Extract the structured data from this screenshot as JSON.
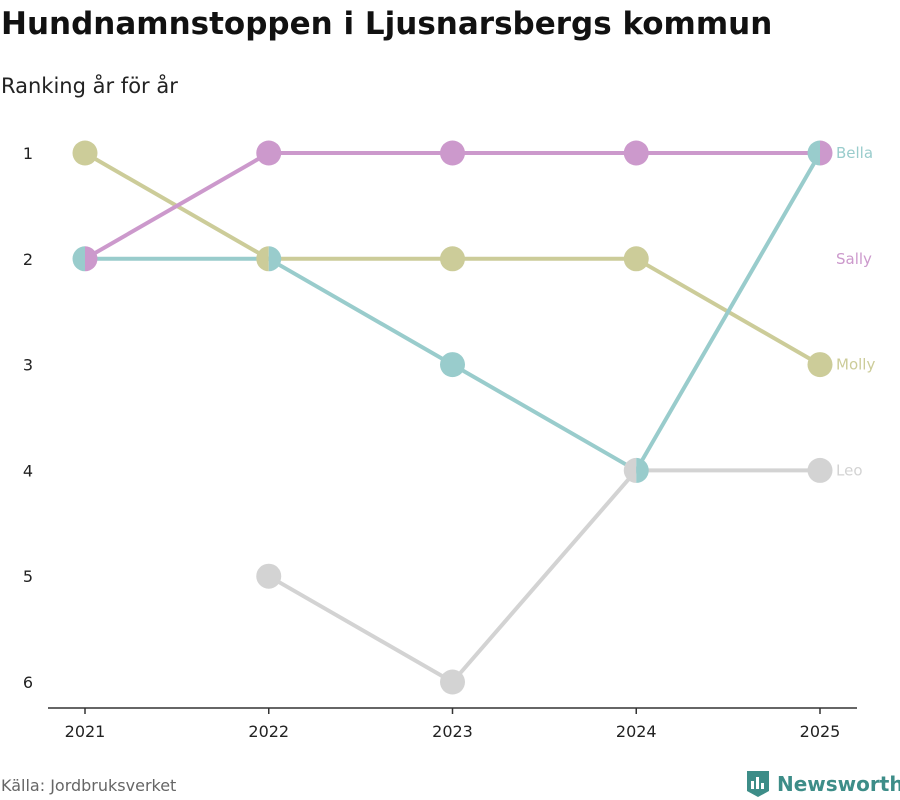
{
  "header": {
    "title": "Hundnamnstoppen i Ljusnarsbergs kommun",
    "subtitle": "Ranking år för år"
  },
  "footer": {
    "source": "Källa: Jordbruksverket",
    "brand": "Newsworthy",
    "brand_icon": "newsworthy-logo-icon",
    "brand_color": "#3d8d88"
  },
  "chart_data": {
    "type": "line",
    "x": [
      "2021",
      "2022",
      "2023",
      "2024",
      "2025"
    ],
    "y_ticks": [
      1,
      2,
      3,
      4,
      5,
      6
    ],
    "ylim": [
      1,
      6
    ],
    "y_reversed": true,
    "grid": false,
    "series": [
      {
        "name": "Leo",
        "color": "#d3d3d3",
        "values": [
          null,
          5,
          6,
          4,
          4
        ]
      },
      {
        "name": "Molly",
        "color": "#cccc99",
        "values": [
          1,
          2,
          2,
          2,
          3
        ]
      },
      {
        "name": "Bella",
        "color": "#99cccc",
        "values": [
          2,
          2,
          3,
          4,
          1
        ]
      },
      {
        "name": "Sally",
        "color": "#cc99cc",
        "values": [
          2,
          1,
          1,
          1,
          1
        ]
      }
    ]
  }
}
